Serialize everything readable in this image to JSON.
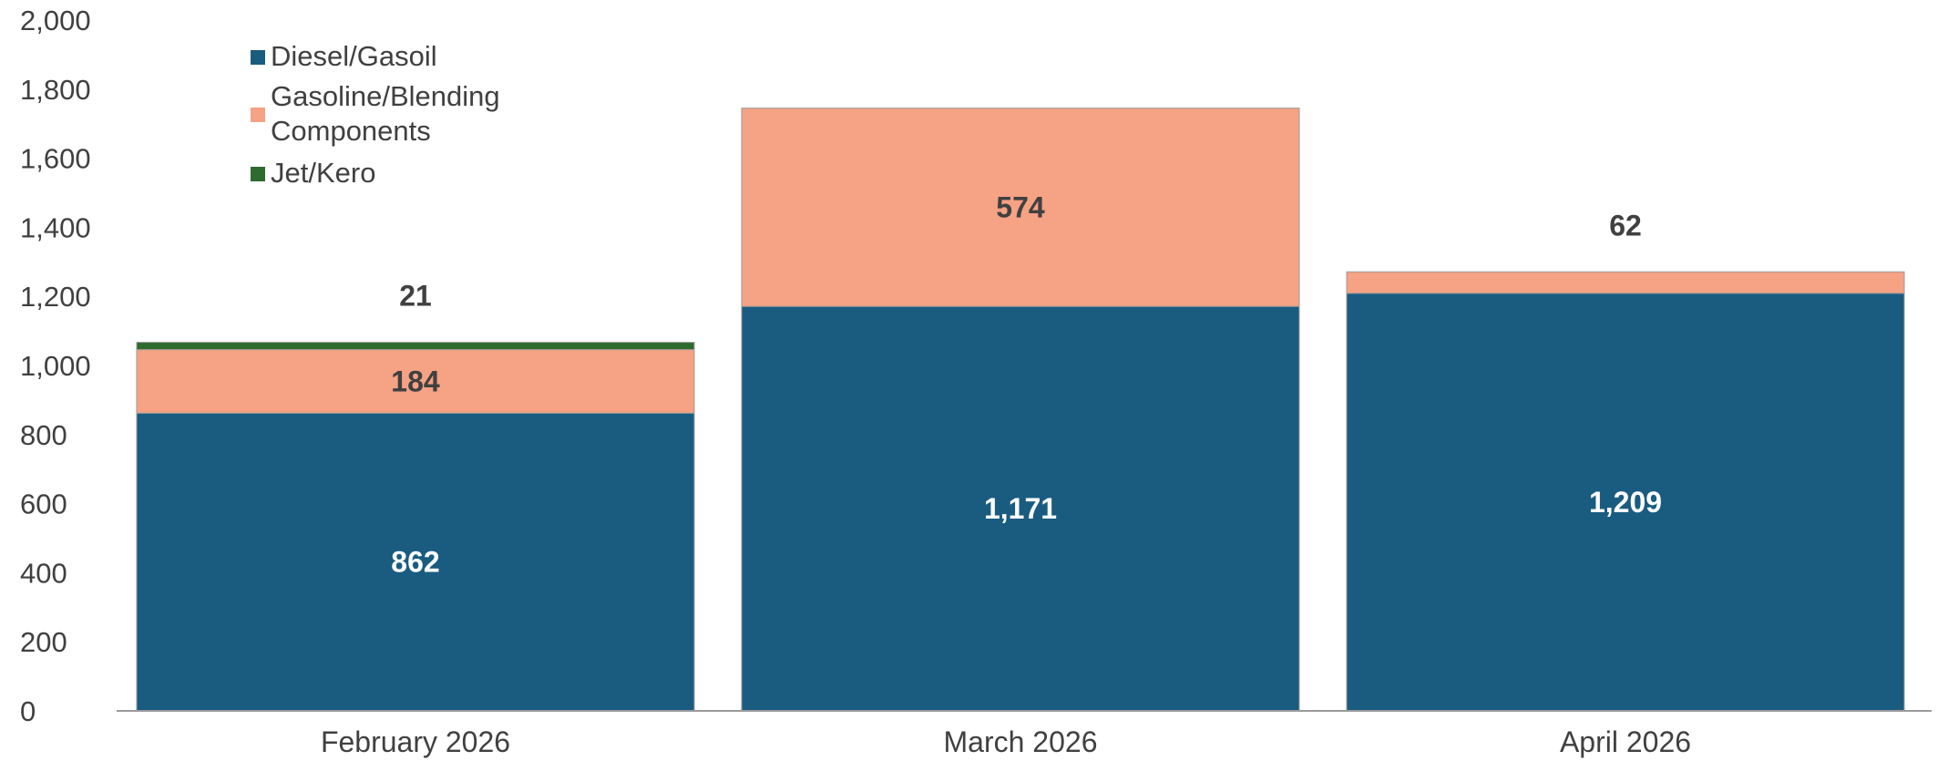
{
  "chart_data": {
    "type": "bar",
    "stacked": true,
    "title": "",
    "xlabel": "",
    "ylabel": "",
    "categories": [
      "February 2026",
      "March 2026",
      "April 2026"
    ],
    "ylim": [
      0,
      2000
    ],
    "yticks": [
      0,
      200,
      400,
      600,
      800,
      "1,000",
      "1,200",
      "1,400",
      "1,600",
      "1,800",
      "2,000"
    ],
    "ytick_values": [
      0,
      200,
      400,
      600,
      800,
      1000,
      1200,
      1400,
      1600,
      1800,
      2000
    ],
    "legend_position": "top-left",
    "grid": false,
    "series": [
      {
        "name": "Diesel/Gasoil",
        "color": "#1a5c80",
        "values": [
          862,
          1171,
          1209
        ],
        "labels": [
          "862",
          "1,171",
          "1,209"
        ],
        "label_color": "#ffffff"
      },
      {
        "name": "Gasoline/Blending Components",
        "legend_lines": [
          "Gasoline/Blending",
          "Components"
        ],
        "color": "#f6a284",
        "values": [
          184,
          574,
          62
        ],
        "labels": [
          "184",
          "574",
          "62"
        ],
        "label_color": "#404040"
      },
      {
        "name": "Jet/Kero",
        "color": "#2e6b2e",
        "values": [
          21,
          0,
          0
        ],
        "labels": [
          "21",
          "",
          ""
        ],
        "label_color": "#404040"
      }
    ]
  }
}
